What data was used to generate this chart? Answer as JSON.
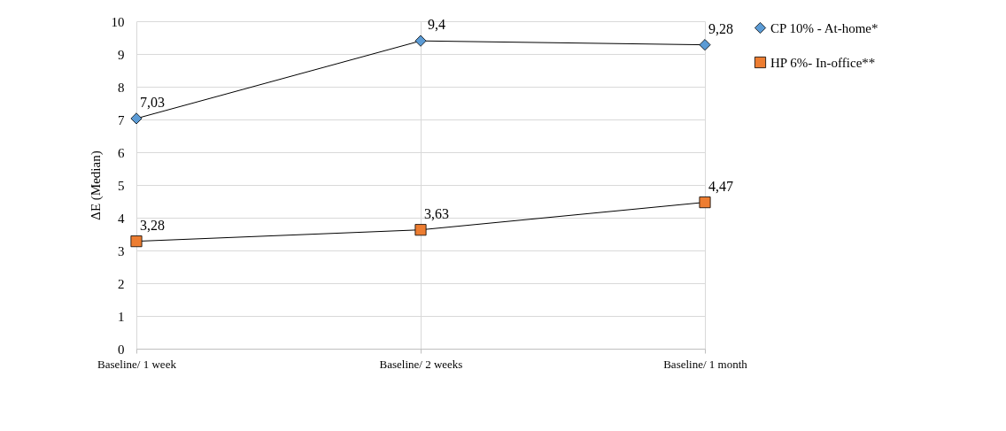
{
  "chart_data": {
    "type": "line",
    "ylabel": "ΔE  (Median)",
    "categories": [
      "Baseline/ 1 week",
      "Baseline/ 2 weeks",
      "Baseline/ 1 month"
    ],
    "series": [
      {
        "name": "CP 10% - At-home*",
        "color": "#5b9bd5",
        "marker": "diamond",
        "values": [
          7.03,
          9.4,
          9.28
        ],
        "value_labels": [
          "7,03",
          "9,4",
          "9,28"
        ]
      },
      {
        "name": "HP 6%- In-office**",
        "color": "#ed7d31",
        "marker": "square",
        "values": [
          3.28,
          3.63,
          4.47
        ],
        "value_labels": [
          "3,28",
          "3,63",
          "4,47"
        ]
      }
    ],
    "ylim": [
      0,
      10
    ],
    "yticks": [
      0,
      1,
      2,
      3,
      4,
      5,
      6,
      7,
      8,
      9,
      10
    ],
    "grid": true,
    "legend": "right",
    "line_style": "solid"
  }
}
